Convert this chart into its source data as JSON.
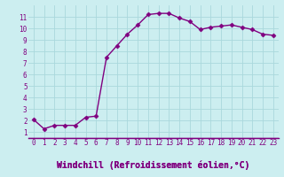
{
  "x": [
    0,
    1,
    2,
    3,
    4,
    5,
    6,
    7,
    8,
    9,
    10,
    11,
    12,
    13,
    14,
    15,
    16,
    17,
    18,
    19,
    20,
    21,
    22,
    23
  ],
  "y": [
    2.1,
    1.3,
    1.6,
    1.6,
    1.6,
    2.3,
    2.4,
    7.5,
    8.5,
    9.5,
    10.3,
    11.2,
    11.3,
    11.3,
    10.9,
    10.6,
    9.9,
    10.1,
    10.2,
    10.3,
    10.1,
    9.9,
    9.5,
    9.4
  ],
  "line_color": "#800080",
  "marker": "D",
  "marker_size": 2.5,
  "bg_color": "#cceef0",
  "grid_color": "#aad8dc",
  "xlabel": "Windchill (Refroidissement éolien,°C)",
  "xlabel_color": "#800080",
  "tick_label_color": "#800080",
  "axis_line_color": "#800080",
  "bottom_bg": "#ffffff",
  "ylim": [
    0.5,
    12
  ],
  "xlim": [
    -0.5,
    23.5
  ],
  "yticks": [
    1,
    2,
    3,
    4,
    5,
    6,
    7,
    8,
    9,
    10,
    11
  ],
  "xticks": [
    0,
    1,
    2,
    3,
    4,
    5,
    6,
    7,
    8,
    9,
    10,
    11,
    12,
    13,
    14,
    15,
    16,
    17,
    18,
    19,
    20,
    21,
    22,
    23
  ],
  "tick_fontsize": 5.5,
  "xlabel_fontsize": 7.0,
  "linewidth": 1.0
}
